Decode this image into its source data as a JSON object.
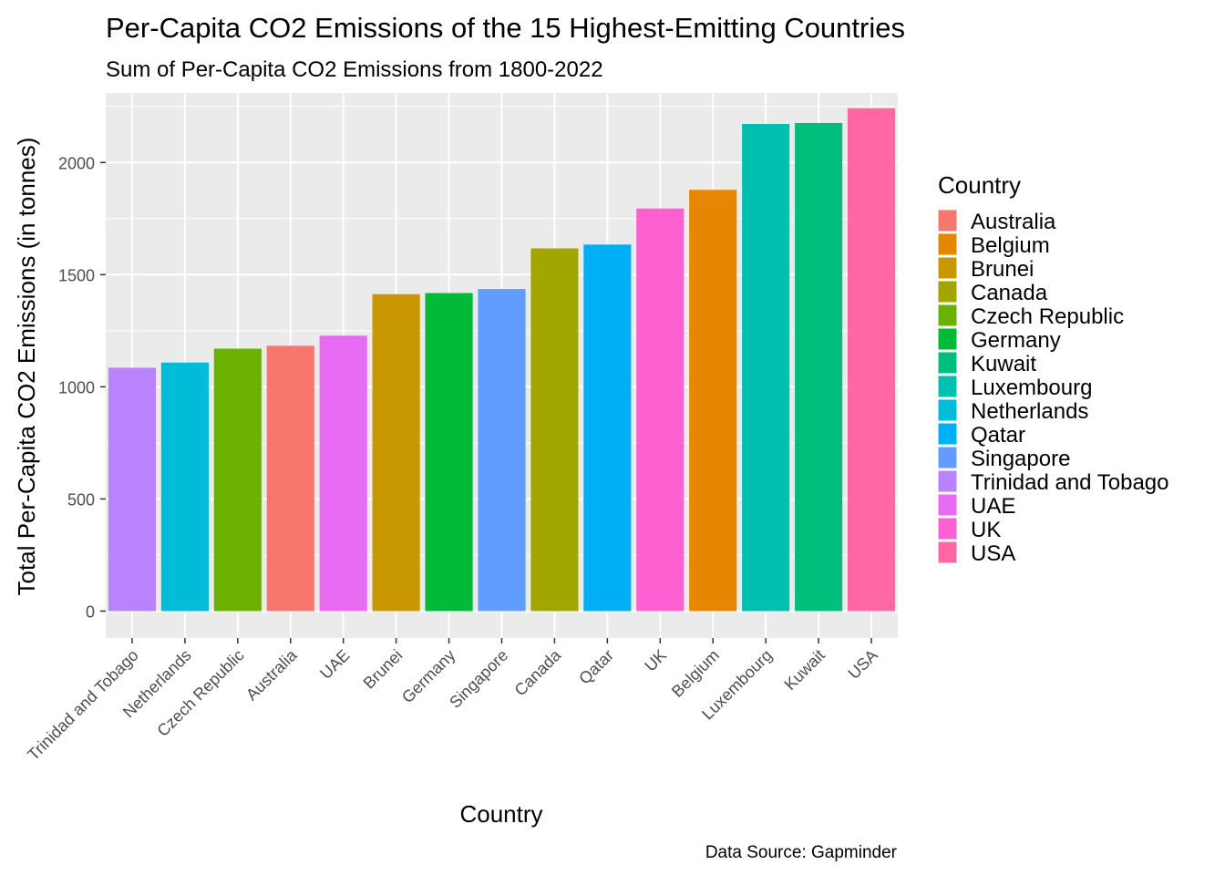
{
  "chart_data": {
    "type": "bar",
    "title": "Per-Capita CO2 Emissions of the 15 Highest-Emitting Countries",
    "subtitle": "Sum of Per-Capita CO2 Emissions from 1800-2022",
    "xlabel": "Country",
    "ylabel": "Total Per-Capita CO2 Emissions (in tonnes)",
    "caption": "Data Source: Gapminder",
    "ylim": [
      -120,
      2310
    ],
    "yticks": [
      0,
      500,
      1000,
      1500,
      2000
    ],
    "ytick_labels": [
      "0",
      "500",
      "1000",
      "1500",
      "2000"
    ],
    "grid": true,
    "legend_position": "right",
    "legend_title": "Country",
    "categories": [
      "Trinidad and Tobago",
      "Netherlands",
      "Czech Republic",
      "Australia",
      "UAE",
      "Brunei",
      "Germany",
      "Singapore",
      "Canada",
      "Qatar",
      "UK",
      "Belgium",
      "Luxembourg",
      "Kuwait",
      "USA"
    ],
    "values": [
      1085,
      1108,
      1170,
      1183,
      1228,
      1413,
      1418,
      1436,
      1617,
      1634,
      1795,
      1878,
      2172,
      2176,
      2242
    ],
    "legend": [
      {
        "name": "Australia",
        "color": "#F8766D"
      },
      {
        "name": "Belgium",
        "color": "#E58700"
      },
      {
        "name": "Brunei",
        "color": "#C99800"
      },
      {
        "name": "Canada",
        "color": "#A3A500"
      },
      {
        "name": "Czech Republic",
        "color": "#6BB100"
      },
      {
        "name": "Germany",
        "color": "#00BA38"
      },
      {
        "name": "Kuwait",
        "color": "#00BF7D"
      },
      {
        "name": "Luxembourg",
        "color": "#00C0AF"
      },
      {
        "name": "Netherlands",
        "color": "#00BCD8"
      },
      {
        "name": "Qatar",
        "color": "#00B0F6"
      },
      {
        "name": "Singapore",
        "color": "#619CFF"
      },
      {
        "name": "Trinidad and Tobago",
        "color": "#B983FF"
      },
      {
        "name": "UAE",
        "color": "#E76BF3"
      },
      {
        "name": "UK",
        "color": "#FD61D1"
      },
      {
        "name": "USA",
        "color": "#FF67A4"
      }
    ],
    "panel_background": "#EBEBEB",
    "grid_color": "#FFFFFF"
  }
}
